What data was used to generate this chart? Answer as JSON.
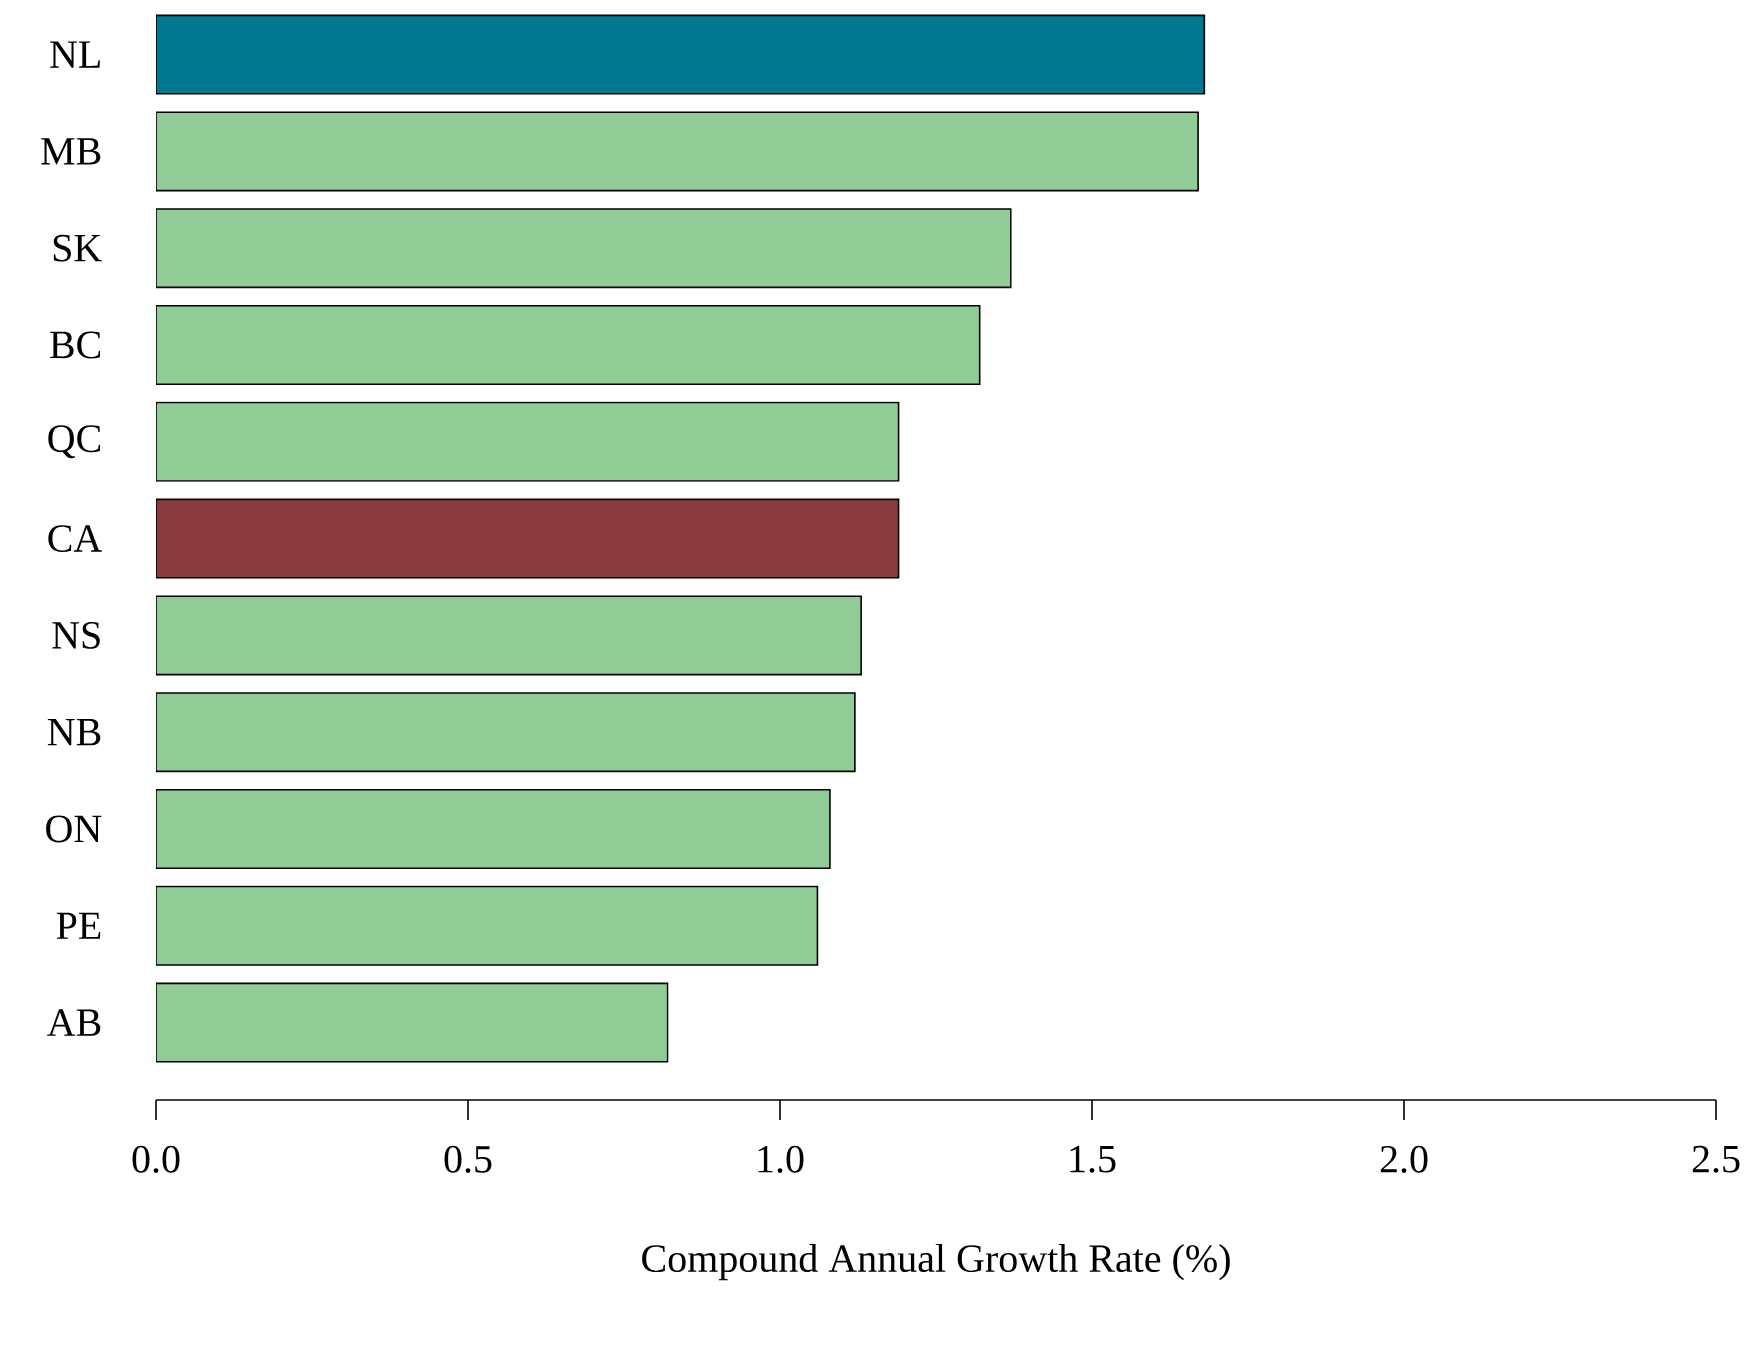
{
  "chart_data": {
    "type": "bar",
    "orientation": "horizontal",
    "xlabel": "Compound Annual Growth Rate (%)",
    "categories": [
      "NL",
      "MB",
      "SK",
      "BC",
      "QC",
      "CA",
      "NS",
      "NB",
      "ON",
      "PE",
      "AB"
    ],
    "values": [
      1.68,
      1.67,
      1.37,
      1.32,
      1.19,
      1.19,
      1.13,
      1.12,
      1.08,
      1.06,
      0.82
    ],
    "colors": [
      "#007890",
      "#90cc96",
      "#90cc96",
      "#90cc96",
      "#90cc96",
      "#8b3a3e",
      "#90cc96",
      "#90cc96",
      "#90cc96",
      "#90cc96",
      "#90cc96"
    ],
    "xlim": [
      0,
      2.5
    ],
    "xticks": [
      {
        "value": 0,
        "label": "0.0"
      },
      {
        "value": 0.5,
        "label": "0.5"
      },
      {
        "value": 1,
        "label": "1.0"
      },
      {
        "value": 1.5,
        "label": "1.5"
      },
      {
        "value": 2,
        "label": "2.0"
      },
      {
        "value": 2.5,
        "label": "2.5"
      }
    ]
  }
}
